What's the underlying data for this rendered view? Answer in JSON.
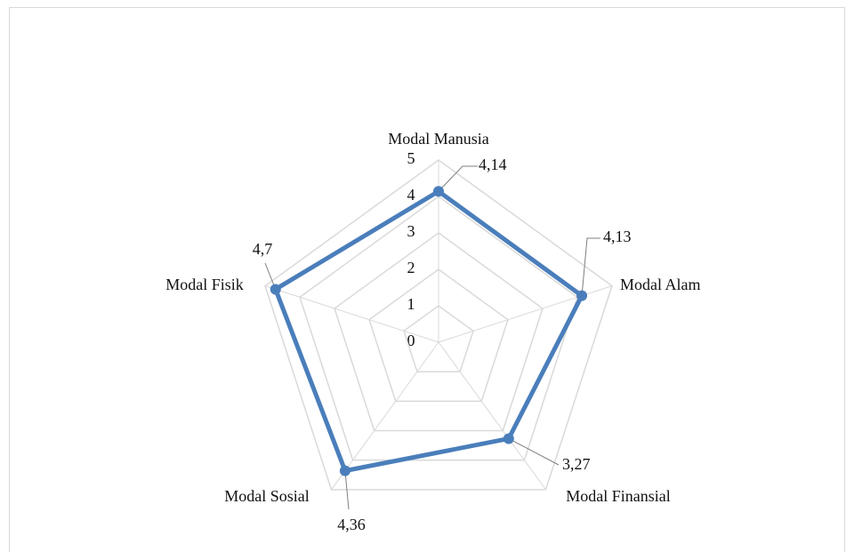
{
  "chart_data": {
    "type": "radar",
    "categories": [
      "Modal Manusia",
      "Modal Alam",
      "Modal Finansial",
      "Modal Sosial",
      "Modal Fisik"
    ],
    "series": [
      {
        "color": "#4a7ebb",
        "values": [
          4.14,
          4.13,
          3.27,
          4.36,
          4.7
        ],
        "value_labels": [
          "4,14",
          "4,13",
          "3,27",
          "4,36",
          "4,7"
        ]
      }
    ],
    "ylim": [
      0,
      5
    ],
    "yticks": [
      0,
      1,
      2,
      3,
      4,
      5
    ],
    "grid": true
  }
}
